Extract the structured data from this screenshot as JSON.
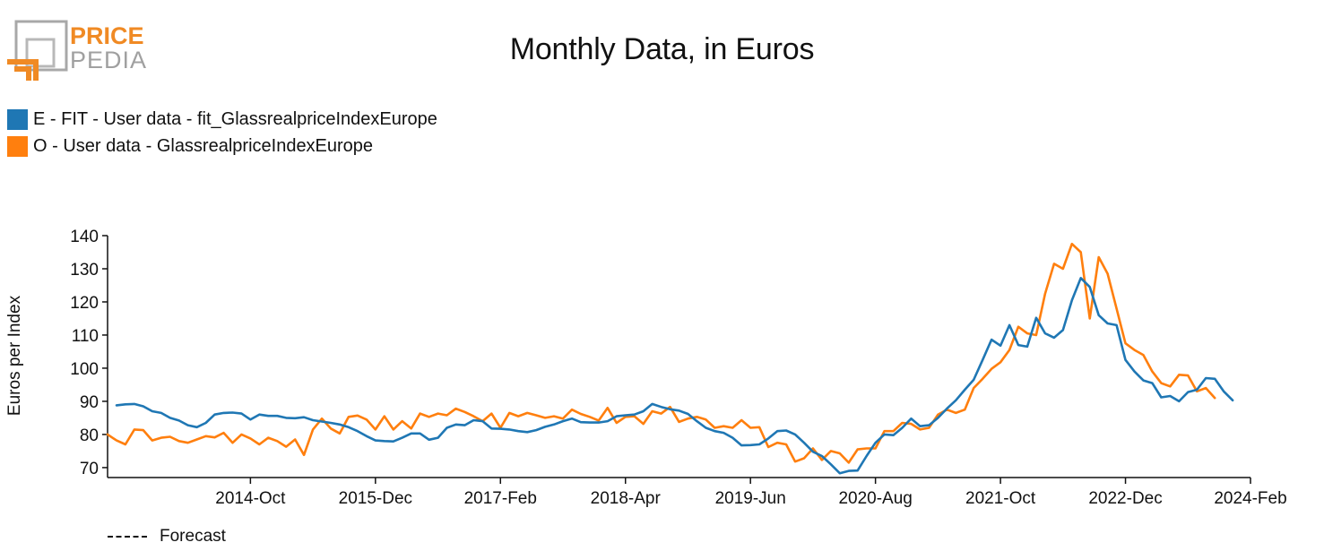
{
  "logo": {
    "top_text": "PRICE",
    "bottom_text": "PEDIA"
  },
  "colors": {
    "fit": "#1f77b4",
    "obs": "#ff7f0e",
    "logo_gray": "#a0a0a0",
    "logo_orange": "#f08a24"
  },
  "forecast_label": "Forecast",
  "chart_data": {
    "type": "line",
    "title": "Monthly Data, in Euros",
    "xlabel": "",
    "ylabel": "Euros per Index",
    "ylim": [
      67,
      140
    ],
    "yticks": [
      70,
      80,
      90,
      100,
      110,
      120,
      130,
      140
    ],
    "x_start": "2013-06",
    "x_end": "2024-02",
    "xticks": [
      "2014-Oct",
      "2015-Dec",
      "2017-Feb",
      "2018-Apr",
      "2019-Jun",
      "2020-Aug",
      "2021-Oct",
      "2022-Dec",
      "2024-Feb"
    ],
    "grid": false,
    "legend_position": "top-left",
    "series": [
      {
        "name": "E - FIT - User data - fit_GlassrealpriceIndexEurope",
        "color": "#1f77b4",
        "points": [
          [
            "2013-07",
            88.8
          ],
          [
            "2013-08",
            89.1
          ],
          [
            "2013-09",
            89.2
          ],
          [
            "2013-10",
            88.5
          ],
          [
            "2013-11",
            87.0
          ],
          [
            "2013-12",
            86.5
          ],
          [
            "2014-01",
            85.0
          ],
          [
            "2014-02",
            84.2
          ],
          [
            "2014-03",
            82.8
          ],
          [
            "2014-04",
            82.2
          ],
          [
            "2014-05",
            83.5
          ],
          [
            "2014-06",
            86.0
          ],
          [
            "2014-07",
            86.5
          ],
          [
            "2014-08",
            86.6
          ],
          [
            "2014-09",
            86.3
          ],
          [
            "2014-10",
            84.5
          ],
          [
            "2014-11",
            86.0
          ],
          [
            "2014-12",
            85.6
          ],
          [
            "2015-01",
            85.6
          ],
          [
            "2015-02",
            85.0
          ],
          [
            "2015-03",
            84.9
          ],
          [
            "2015-04",
            85.2
          ],
          [
            "2015-05",
            84.3
          ],
          [
            "2015-06",
            83.9
          ],
          [
            "2015-07",
            83.5
          ],
          [
            "2015-08",
            83.0
          ],
          [
            "2015-09",
            82.2
          ],
          [
            "2015-10",
            81.0
          ],
          [
            "2015-11",
            79.5
          ],
          [
            "2015-12",
            78.2
          ],
          [
            "2016-01",
            78.0
          ],
          [
            "2016-02",
            77.9
          ],
          [
            "2016-03",
            79.0
          ],
          [
            "2016-04",
            80.3
          ],
          [
            "2016-05",
            80.3
          ],
          [
            "2016-06",
            78.4
          ],
          [
            "2016-07",
            79.0
          ],
          [
            "2016-08",
            82.0
          ],
          [
            "2016-09",
            83.0
          ],
          [
            "2016-10",
            82.8
          ],
          [
            "2016-11",
            84.3
          ],
          [
            "2016-12",
            84.0
          ],
          [
            "2017-01",
            81.8
          ],
          [
            "2017-02",
            81.7
          ],
          [
            "2017-03",
            81.5
          ],
          [
            "2017-04",
            81.0
          ],
          [
            "2017-05",
            80.7
          ],
          [
            "2017-06",
            81.3
          ],
          [
            "2017-07",
            82.3
          ],
          [
            "2017-08",
            83.0
          ],
          [
            "2017-09",
            84.0
          ],
          [
            "2017-10",
            84.8
          ],
          [
            "2017-11",
            83.7
          ],
          [
            "2017-12",
            83.6
          ],
          [
            "2018-01",
            83.6
          ],
          [
            "2018-02",
            84.0
          ],
          [
            "2018-03",
            85.5
          ],
          [
            "2018-04",
            85.8
          ],
          [
            "2018-05",
            86.0
          ],
          [
            "2018-06",
            87.0
          ],
          [
            "2018-07",
            89.2
          ],
          [
            "2018-08",
            88.3
          ],
          [
            "2018-09",
            87.6
          ],
          [
            "2018-10",
            87.2
          ],
          [
            "2018-11",
            86.2
          ],
          [
            "2018-12",
            84.0
          ],
          [
            "2019-01",
            82.0
          ],
          [
            "2019-02",
            81.0
          ],
          [
            "2019-03",
            80.5
          ],
          [
            "2019-04",
            79.0
          ],
          [
            "2019-05",
            76.7
          ],
          [
            "2019-06",
            76.8
          ],
          [
            "2019-07",
            77.0
          ],
          [
            "2019-08",
            78.8
          ],
          [
            "2019-09",
            81.0
          ],
          [
            "2019-10",
            81.2
          ],
          [
            "2019-11",
            80.0
          ],
          [
            "2019-12",
            77.5
          ],
          [
            "2020-01",
            74.8
          ],
          [
            "2020-02",
            73.5
          ],
          [
            "2020-03",
            71.0
          ],
          [
            "2020-04",
            68.3
          ],
          [
            "2020-05",
            69.0
          ],
          [
            "2020-06",
            69.1
          ],
          [
            "2020-07",
            73.5
          ],
          [
            "2020-08",
            77.5
          ],
          [
            "2020-09",
            80.0
          ],
          [
            "2020-10",
            79.8
          ],
          [
            "2020-11",
            82.0
          ],
          [
            "2020-12",
            84.8
          ],
          [
            "2021-01",
            82.5
          ],
          [
            "2021-02",
            82.8
          ],
          [
            "2021-03",
            85.0
          ],
          [
            "2021-04",
            87.8
          ],
          [
            "2021-05",
            90.3
          ],
          [
            "2021-06",
            93.5
          ],
          [
            "2021-07",
            96.5
          ],
          [
            "2021-08",
            102.5
          ],
          [
            "2021-09",
            108.6
          ],
          [
            "2021-10",
            106.8
          ],
          [
            "2021-11",
            113.0
          ],
          [
            "2021-12",
            107.0
          ],
          [
            "2022-01",
            106.5
          ],
          [
            "2022-02",
            115.2
          ],
          [
            "2022-03",
            110.5
          ],
          [
            "2022-04",
            109.2
          ],
          [
            "2022-05",
            111.5
          ],
          [
            "2022-06",
            120.5
          ],
          [
            "2022-07",
            127.2
          ],
          [
            "2022-08",
            124.5
          ],
          [
            "2022-09",
            116.0
          ],
          [
            "2022-10",
            113.5
          ],
          [
            "2022-11",
            113.0
          ],
          [
            "2022-12",
            102.5
          ],
          [
            "2023-01",
            99.0
          ],
          [
            "2023-02",
            96.3
          ],
          [
            "2023-03",
            95.5
          ],
          [
            "2023-04",
            91.2
          ],
          [
            "2023-05",
            91.6
          ],
          [
            "2023-06",
            90.0
          ],
          [
            "2023-07",
            92.8
          ],
          [
            "2023-08",
            93.5
          ],
          [
            "2023-09",
            97.0
          ],
          [
            "2023-10",
            96.8
          ],
          [
            "2023-11",
            93.0
          ],
          [
            "2023-12",
            90.3
          ]
        ]
      },
      {
        "name": "O - User data - GlassrealpriceIndexEurope",
        "color": "#ff7f0e",
        "points": [
          [
            "2013-06",
            80.0
          ],
          [
            "2013-07",
            78.2
          ],
          [
            "2013-08",
            77.0
          ],
          [
            "2013-09",
            81.5
          ],
          [
            "2013-10",
            81.3
          ],
          [
            "2013-11",
            78.2
          ],
          [
            "2013-12",
            79.0
          ],
          [
            "2014-01",
            79.3
          ],
          [
            "2014-02",
            78.0
          ],
          [
            "2014-03",
            77.5
          ],
          [
            "2014-04",
            78.5
          ],
          [
            "2014-05",
            79.5
          ],
          [
            "2014-06",
            79.1
          ],
          [
            "2014-07",
            80.5
          ],
          [
            "2014-08",
            77.5
          ],
          [
            "2014-09",
            80.0
          ],
          [
            "2014-10",
            78.8
          ],
          [
            "2014-11",
            77.0
          ],
          [
            "2014-12",
            79.0
          ],
          [
            "2015-01",
            78.0
          ],
          [
            "2015-02",
            76.3
          ],
          [
            "2015-03",
            78.5
          ],
          [
            "2015-04",
            73.8
          ],
          [
            "2015-05",
            81.5
          ],
          [
            "2015-06",
            84.8
          ],
          [
            "2015-07",
            81.8
          ],
          [
            "2015-08",
            80.3
          ],
          [
            "2015-09",
            85.3
          ],
          [
            "2015-10",
            85.7
          ],
          [
            "2015-11",
            84.5
          ],
          [
            "2015-12",
            81.5
          ],
          [
            "2016-01",
            85.5
          ],
          [
            "2016-02",
            81.5
          ],
          [
            "2016-03",
            84.0
          ],
          [
            "2016-04",
            81.8
          ],
          [
            "2016-05",
            86.3
          ],
          [
            "2016-06",
            85.3
          ],
          [
            "2016-07",
            86.3
          ],
          [
            "2016-08",
            85.8
          ],
          [
            "2016-09",
            87.8
          ],
          [
            "2016-10",
            86.8
          ],
          [
            "2016-11",
            85.5
          ],
          [
            "2016-12",
            84.0
          ],
          [
            "2017-01",
            86.3
          ],
          [
            "2017-02",
            82.0
          ],
          [
            "2017-03",
            86.5
          ],
          [
            "2017-04",
            85.5
          ],
          [
            "2017-05",
            86.5
          ],
          [
            "2017-06",
            85.8
          ],
          [
            "2017-07",
            85.0
          ],
          [
            "2017-08",
            85.5
          ],
          [
            "2017-09",
            84.8
          ],
          [
            "2017-10",
            87.5
          ],
          [
            "2017-11",
            86.2
          ],
          [
            "2017-12",
            85.3
          ],
          [
            "2018-01",
            84.2
          ],
          [
            "2018-02",
            88.0
          ],
          [
            "2018-03",
            83.5
          ],
          [
            "2018-04",
            85.3
          ],
          [
            "2018-05",
            85.5
          ],
          [
            "2018-06",
            83.2
          ],
          [
            "2018-07",
            87.0
          ],
          [
            "2018-08",
            86.3
          ],
          [
            "2018-09",
            88.3
          ],
          [
            "2018-10",
            83.8
          ],
          [
            "2018-11",
            84.8
          ],
          [
            "2018-12",
            85.3
          ],
          [
            "2019-01",
            84.5
          ],
          [
            "2019-02",
            82.0
          ],
          [
            "2019-03",
            82.5
          ],
          [
            "2019-04",
            82.0
          ],
          [
            "2019-05",
            84.3
          ],
          [
            "2019-06",
            82.0
          ],
          [
            "2019-07",
            82.2
          ],
          [
            "2019-08",
            76.2
          ],
          [
            "2019-09",
            77.5
          ],
          [
            "2019-10",
            77.0
          ],
          [
            "2019-11",
            71.8
          ],
          [
            "2019-12",
            72.8
          ],
          [
            "2020-01",
            75.8
          ],
          [
            "2020-02",
            72.3
          ],
          [
            "2020-03",
            75.0
          ],
          [
            "2020-04",
            74.3
          ],
          [
            "2020-05",
            71.5
          ],
          [
            "2020-06",
            75.5
          ],
          [
            "2020-07",
            75.8
          ],
          [
            "2020-08",
            75.8
          ],
          [
            "2020-09",
            81.0
          ],
          [
            "2020-10",
            81.0
          ],
          [
            "2020-11",
            83.5
          ],
          [
            "2020-12",
            83.2
          ],
          [
            "2021-01",
            81.5
          ],
          [
            "2021-02",
            82.0
          ],
          [
            "2021-03",
            86.0
          ],
          [
            "2021-04",
            87.5
          ],
          [
            "2021-05",
            86.5
          ],
          [
            "2021-06",
            87.5
          ],
          [
            "2021-07",
            94.0
          ],
          [
            "2021-08",
            96.8
          ],
          [
            "2021-09",
            99.8
          ],
          [
            "2021-10",
            101.8
          ],
          [
            "2021-11",
            105.5
          ],
          [
            "2021-12",
            112.5
          ],
          [
            "2022-01",
            110.5
          ],
          [
            "2022-02",
            110.0
          ],
          [
            "2022-03",
            122.5
          ],
          [
            "2022-04",
            131.5
          ],
          [
            "2022-05",
            130.0
          ],
          [
            "2022-06",
            137.5
          ],
          [
            "2022-07",
            135.0
          ],
          [
            "2022-08",
            115.0
          ],
          [
            "2022-09",
            133.5
          ],
          [
            "2022-10",
            128.5
          ],
          [
            "2022-11",
            118.0
          ],
          [
            "2022-12",
            107.5
          ],
          [
            "2023-01",
            105.5
          ],
          [
            "2023-02",
            104.0
          ],
          [
            "2023-03",
            99.0
          ],
          [
            "2023-04",
            95.5
          ],
          [
            "2023-05",
            94.5
          ],
          [
            "2023-06",
            98.0
          ],
          [
            "2023-07",
            97.8
          ],
          [
            "2023-08",
            93.0
          ],
          [
            "2023-09",
            94.0
          ],
          [
            "2023-10",
            91.0
          ]
        ]
      }
    ]
  }
}
